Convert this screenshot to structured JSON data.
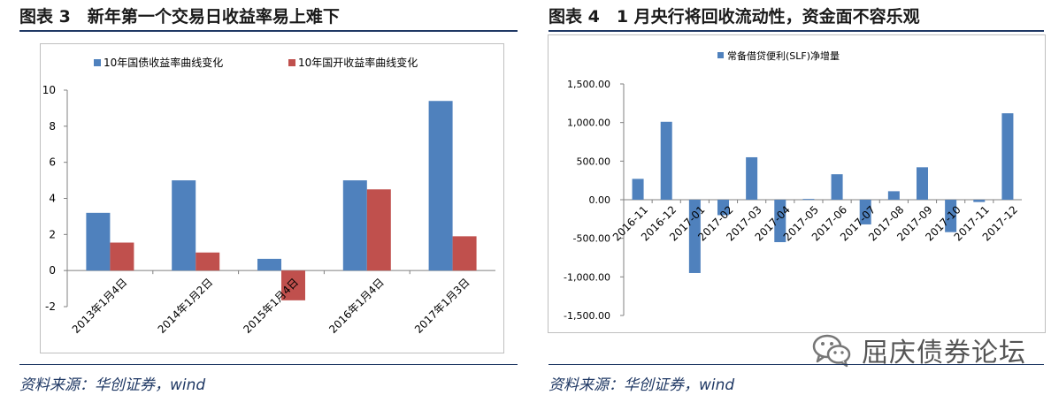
{
  "figures": [
    {
      "title": "图表 3　新年第一个交易日收益率易上难下",
      "source": "资料来源：华创证券，wind"
    },
    {
      "title": "图表 4　1 月央行将回收流动性，资金面不容乐观",
      "source": "资料来源：华创证券，wind"
    }
  ],
  "watermark": {
    "text": "屈庆债券论坛",
    "icon": "wechat-icon"
  },
  "colors": {
    "blue": "#4f81bd",
    "red": "#c0504d",
    "navy": "#1f3864",
    "axis": "#808080"
  },
  "chart_data": [
    {
      "type": "bar",
      "title": "",
      "categories": [
        "2013年1月4日",
        "2014年1月2日",
        "2015年1月4日",
        "2016年1月4日",
        "2017年1月3日"
      ],
      "series": [
        {
          "name": "10年国债收益率曲线变化",
          "values": [
            3.2,
            5.0,
            0.65,
            5.0,
            9.4
          ]
        },
        {
          "name": "10年国开收益率曲线变化",
          "values": [
            1.55,
            1.0,
            -1.65,
            4.5,
            1.9
          ]
        }
      ],
      "ylim": [
        -2,
        10
      ],
      "yticks": [
        "10",
        "8",
        "6",
        "4",
        "2",
        "0",
        "-2"
      ],
      "legend": "top",
      "grid": false
    },
    {
      "type": "bar",
      "title": "",
      "categories": [
        "2016-11",
        "2016-12",
        "2017-01",
        "2017-02",
        "2017-03",
        "2017-04",
        "2017-05",
        "2017-06",
        "2017-07",
        "2017-08",
        "2017-09",
        "2017-10",
        "2017-11",
        "2017-12"
      ],
      "series": [
        {
          "name": "常备借贷便利(SLF)净增量",
          "values": [
            270,
            1010,
            -950,
            -200,
            550,
            -550,
            10,
            330,
            -320,
            110,
            420,
            -420,
            -30,
            1120
          ]
        }
      ],
      "ylim": [
        -1500,
        1500
      ],
      "yticks": [
        "1,500.00",
        "1,000.00",
        "500.00",
        "0.00",
        "-500.00",
        "-1,000.00",
        "-1,500.00"
      ],
      "legend": "top",
      "grid": false
    }
  ]
}
